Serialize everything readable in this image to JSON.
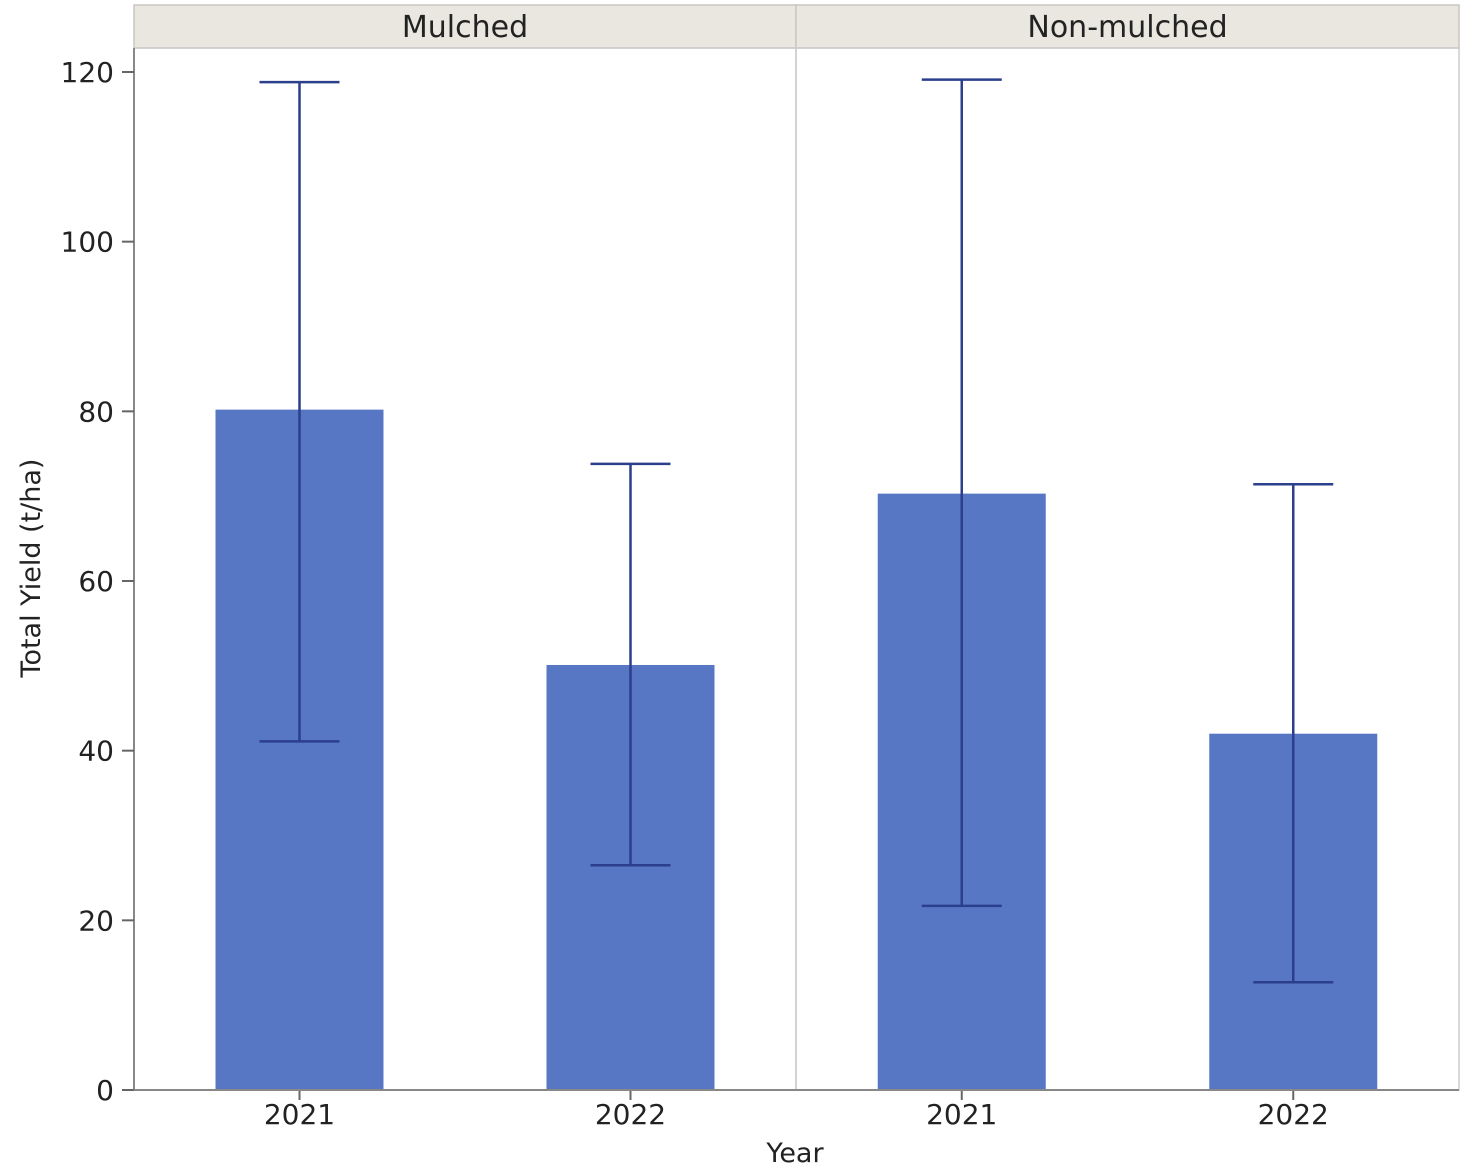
{
  "chart_data": {
    "type": "bar",
    "xlabel": "Year",
    "ylabel": "Total Yield (t/ha)",
    "ylim": [
      0,
      120
    ],
    "yticks": [
      0,
      20,
      40,
      60,
      80,
      100,
      120
    ],
    "grid": false,
    "bar_color": "#5777c5",
    "error_bar_color": "#2b3f8c",
    "panel_header_color": "#e9e7df",
    "panels": [
      {
        "label": "Mulched",
        "categories": [
          "2021",
          "2022"
        ],
        "values": [
          80.2,
          50.1
        ],
        "error_low": [
          41.1,
          26.5
        ],
        "error_high": [
          118.8,
          73.8
        ]
      },
      {
        "label": "Non-mulched",
        "categories": [
          "2021",
          "2022"
        ],
        "values": [
          70.3,
          42.0
        ],
        "error_low": [
          21.7,
          12.7
        ],
        "error_high": [
          119.1,
          71.4
        ]
      }
    ]
  }
}
